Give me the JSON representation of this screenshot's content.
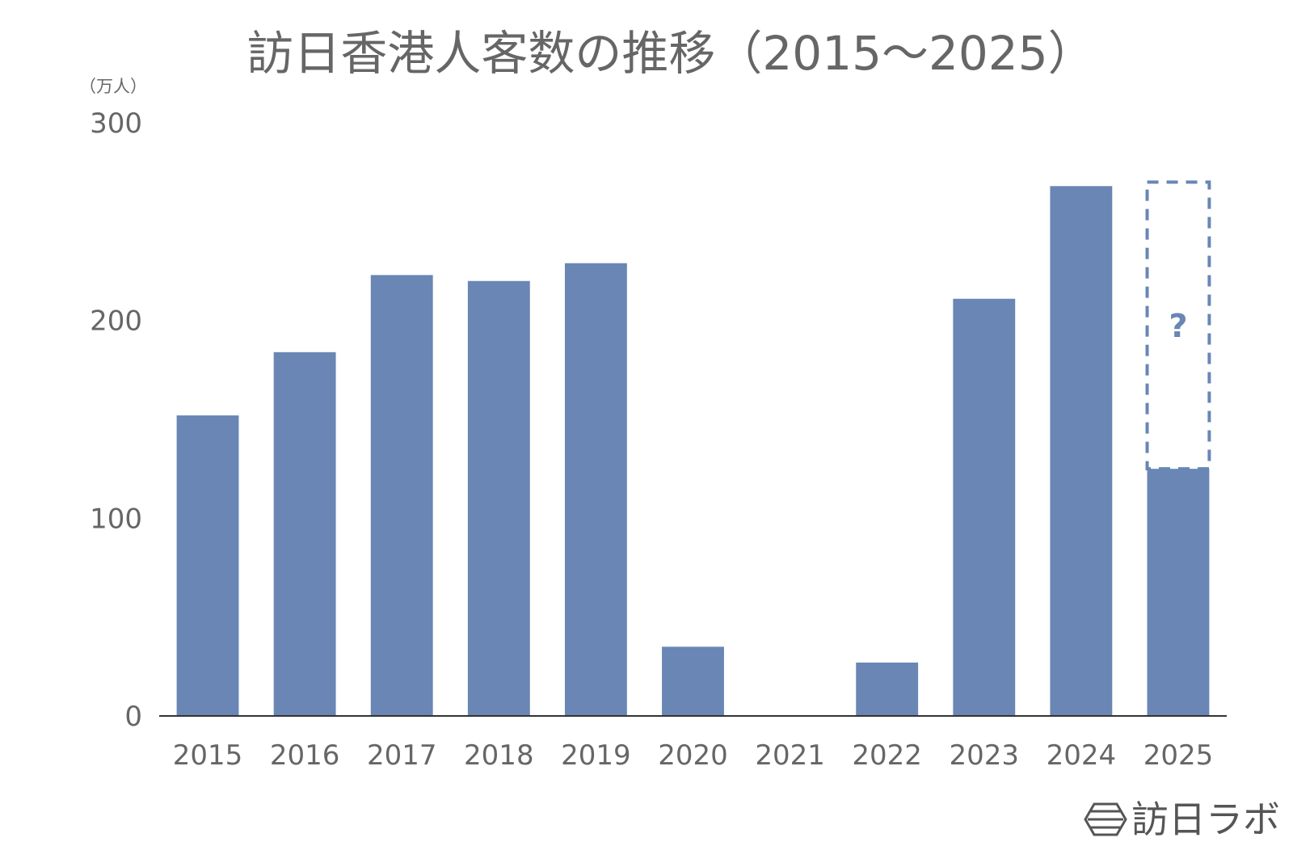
{
  "chart_data": {
    "type": "bar",
    "title": "訪日香港人客数の推移（2015〜2025）",
    "unit_label": "（万人）",
    "categories": [
      "2015",
      "2016",
      "2017",
      "2018",
      "2019",
      "2020",
      "2021",
      "2022",
      "2023",
      "2024",
      "2025"
    ],
    "values": [
      152,
      184,
      223,
      220,
      229,
      35,
      0,
      27,
      211,
      268,
      125
    ],
    "projected": {
      "category": "2025",
      "value": 270,
      "label": "?"
    },
    "yticks": [
      0,
      100,
      200,
      300
    ],
    "ylim": [
      0,
      300
    ],
    "grid": false,
    "legend": false,
    "colors": {
      "bar": "#6986b4",
      "text": "#666666",
      "axis": "#333333"
    }
  },
  "brand": {
    "name": "訪日ラボ",
    "icon": "hexagon-logo-icon"
  }
}
